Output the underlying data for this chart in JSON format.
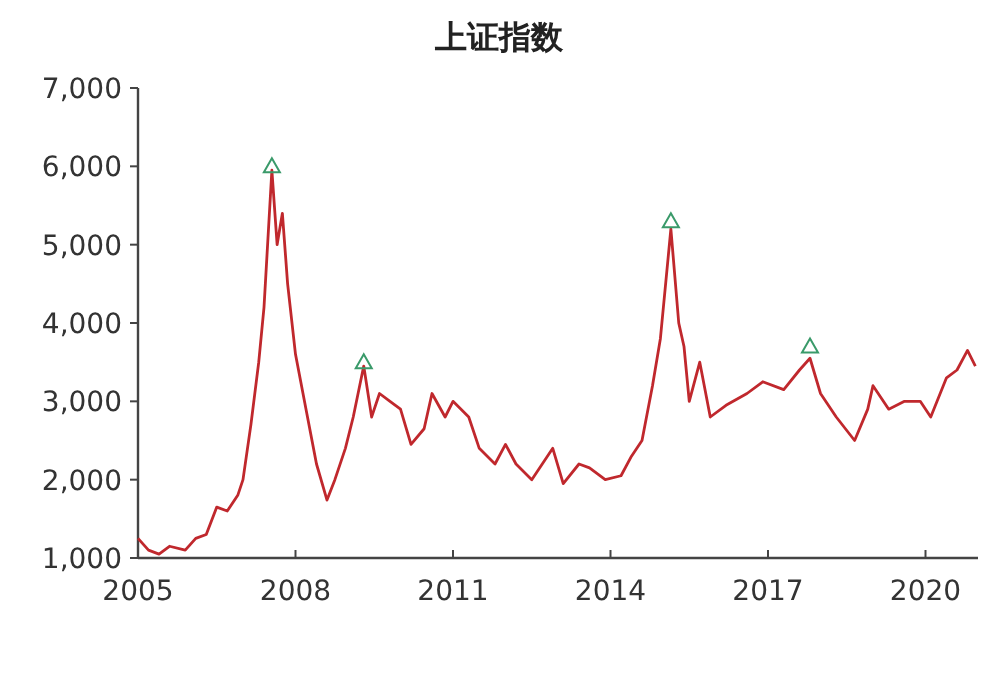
{
  "chart_data": {
    "type": "line",
    "title": "上证指数",
    "xlim": [
      2005,
      2021
    ],
    "ylim": [
      1000,
      7000
    ],
    "xticks": [
      2005,
      2008,
      2011,
      2014,
      2017,
      2020
    ],
    "yticks": [
      {
        "value": 1000,
        "label": "1,000"
      },
      {
        "value": 2000,
        "label": "2,000"
      },
      {
        "value": 3000,
        "label": "3,000"
      },
      {
        "value": 4000,
        "label": "4,000"
      },
      {
        "value": 5000,
        "label": "5,000"
      },
      {
        "value": 6000,
        "label": "6,000"
      },
      {
        "value": 7000,
        "label": "7,000"
      }
    ],
    "series": [
      {
        "color": "#c0282d",
        "x": [
          2005.0,
          2005.2,
          2005.4,
          2005.6,
          2005.9,
          2006.1,
          2006.3,
          2006.5,
          2006.7,
          2006.9,
          2007.0,
          2007.15,
          2007.3,
          2007.4,
          2007.55,
          2007.65,
          2007.75,
          2007.85,
          2008.0,
          2008.2,
          2008.4,
          2008.6,
          2008.75,
          2008.95,
          2009.1,
          2009.3,
          2009.45,
          2009.6,
          2009.8,
          2010.0,
          2010.2,
          2010.45,
          2010.6,
          2010.85,
          2011.0,
          2011.3,
          2011.5,
          2011.8,
          2012.0,
          2012.2,
          2012.5,
          2012.9,
          2013.1,
          2013.4,
          2013.6,
          2013.9,
          2014.2,
          2014.4,
          2014.6,
          2014.8,
          2014.95,
          2015.15,
          2015.3,
          2015.4,
          2015.5,
          2015.7,
          2015.9,
          2016.2,
          2016.6,
          2016.9,
          2017.3,
          2017.6,
          2017.8,
          2018.0,
          2018.3,
          2018.65,
          2018.9,
          2019.0,
          2019.3,
          2019.6,
          2019.9,
          2020.1,
          2020.4,
          2020.6,
          2020.8,
          2020.95
        ],
        "values": [
          1250,
          1100,
          1050,
          1150,
          1100,
          1250,
          1300,
          1650,
          1600,
          1800,
          2000,
          2700,
          3500,
          4200,
          5950,
          5000,
          5400,
          4500,
          3600,
          2900,
          2200,
          1740,
          2000,
          2400,
          2800,
          3450,
          2800,
          3100,
          3000,
          2900,
          2450,
          2650,
          3100,
          2800,
          3000,
          2800,
          2400,
          2200,
          2450,
          2200,
          2000,
          2400,
          1950,
          2200,
          2150,
          2000,
          2050,
          2300,
          2500,
          3200,
          3800,
          5200,
          4000,
          3700,
          3000,
          3500,
          2800,
          2950,
          3100,
          3250,
          3150,
          3400,
          3550,
          3100,
          2800,
          2500,
          2900,
          3200,
          2900,
          3000,
          3000,
          2800,
          3300,
          3400,
          3650,
          3450
        ]
      },
      {
        "type": "scatter",
        "color": "#3a9a6a",
        "marker": "triangle",
        "x": [
          2007.55,
          2009.3,
          2015.15,
          2017.8
        ],
        "values": [
          6000,
          3500,
          5300,
          3700
        ]
      }
    ]
  }
}
